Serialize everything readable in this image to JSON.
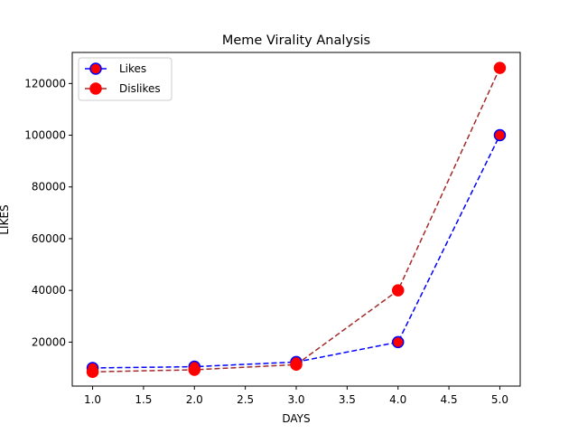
{
  "chart_data": {
    "type": "line",
    "title": "Meme Virality Analysis",
    "xlabel": "DAYS",
    "ylabel": "LIKES",
    "xlim": [
      0.8,
      5.2
    ],
    "ylim": [
      3000,
      132000
    ],
    "x_ticks": [
      "1.0",
      "1.5",
      "2.0",
      "2.5",
      "3.0",
      "3.5",
      "4.0",
      "4.5",
      "5.0"
    ],
    "x_tick_values": [
      1.0,
      1.5,
      2.0,
      2.5,
      3.0,
      3.5,
      4.0,
      4.5,
      5.0
    ],
    "y_ticks": [
      "20000",
      "40000",
      "60000",
      "80000",
      "100000",
      "120000"
    ],
    "y_tick_values": [
      20000,
      40000,
      60000,
      80000,
      100000,
      120000
    ],
    "grid": false,
    "legend_position": "top-left",
    "x": [
      1,
      2,
      3,
      4,
      5
    ],
    "series": [
      {
        "name": "Likes",
        "values": [
          10000,
          10500,
          12300,
          20000,
          100000
        ],
        "line_color": "#0000ff",
        "marker_face": "#ff0000",
        "marker_edge": "#0000ff",
        "line_style": "dashed"
      },
      {
        "name": "Dislikes",
        "values": [
          8500,
          9300,
          11300,
          40000,
          126000
        ],
        "line_color": "#a52a2a",
        "marker_face": "#ff0000",
        "marker_edge": "#ff0000",
        "line_style": "dashed"
      }
    ]
  }
}
